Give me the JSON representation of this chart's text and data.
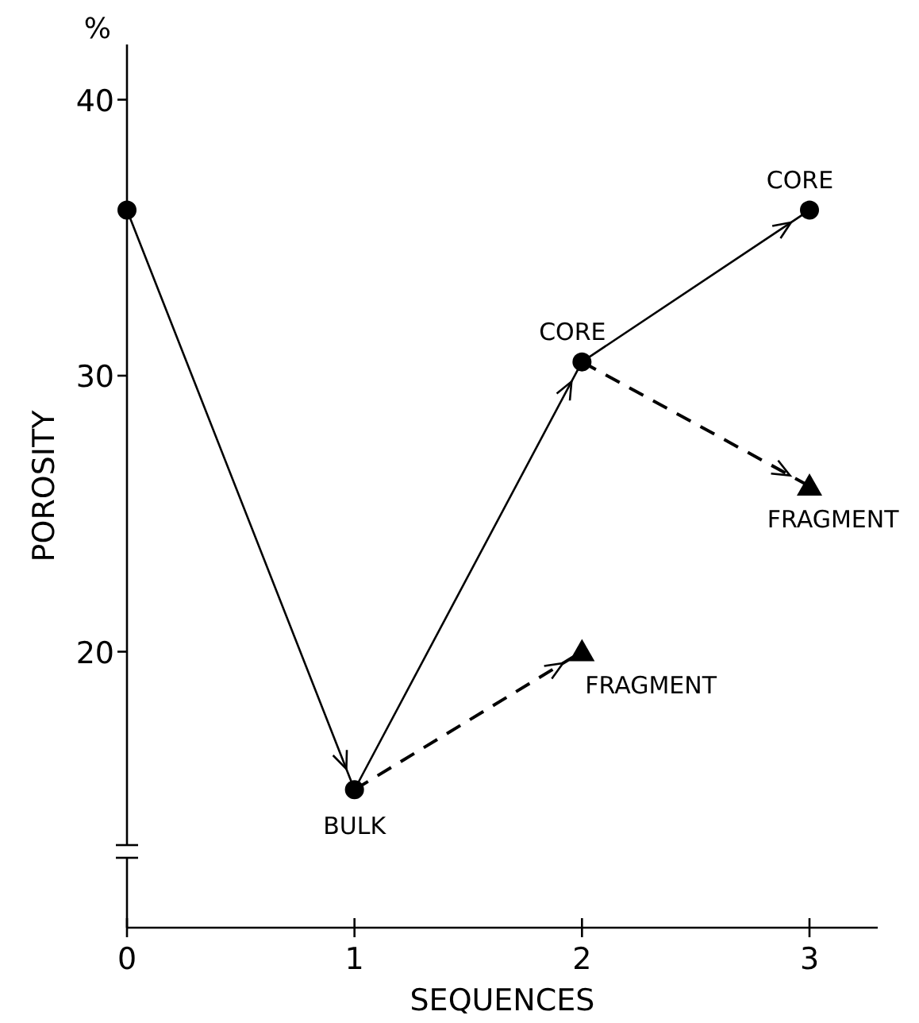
{
  "chart_data": {
    "type": "line",
    "xlabel": "SEQUENCES",
    "ylabel": "POROSITY",
    "xlim": [
      0,
      3.3
    ],
    "xticks": [
      0,
      1,
      2,
      3
    ],
    "ylim": [
      10,
      42
    ],
    "yticks": [
      20,
      30,
      40
    ],
    "grid": false,
    "series": [
      {
        "type": "line",
        "color": "#000000",
        "x": [
          0,
          1,
          2,
          3
        ],
        "values": [
          36,
          15,
          30.5,
          36
        ],
        "marker": "circle",
        "line_style": "solid"
      },
      {
        "type": "line",
        "color": "#000000",
        "x": [
          1,
          2
        ],
        "values": [
          15,
          20
        ],
        "marker": "none",
        "line_style": "dashed"
      },
      {
        "type": "line",
        "color": "#000000",
        "x": [
          2,
          3
        ],
        "values": [
          30.5,
          26
        ],
        "marker": "none",
        "line_style": "dashed"
      },
      {
        "type": "scatter",
        "color": "#000000",
        "x": [
          2,
          3
        ],
        "values": [
          20,
          26
        ],
        "marker": "triangle"
      }
    ],
    "annotations": [
      "%",
      {
        "text": "BULK",
        "x": 1,
        "y": 15
      },
      {
        "text": "CORE",
        "x": 2,
        "y": 30.5
      },
      {
        "text": "CORE",
        "x": 3,
        "y": 36
      },
      {
        "text": "FRAGMENT",
        "x": 2,
        "y": 20
      },
      {
        "text": "FRAGMENT",
        "x": 3,
        "y": 26
      }
    ]
  }
}
